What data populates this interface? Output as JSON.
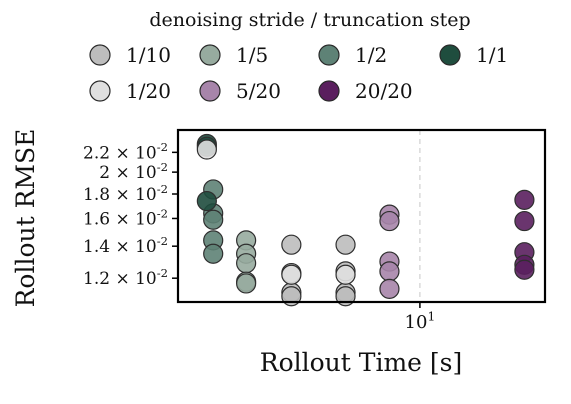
{
  "chart_data": {
    "type": "scatter",
    "xlabel": "Rollout Time [s]",
    "ylabel": "Rollout RMSE",
    "x_scale": "log",
    "y_scale": "log",
    "xlim": [
      1.7,
      25
    ],
    "ylim": [
      0.0107,
      0.0245
    ],
    "grid": "dashed vertical line at x = 10^1 only",
    "x_ticks": [
      {
        "value": 10,
        "label": "10^1"
      }
    ],
    "y_ticks": [
      {
        "value": 0.012,
        "label": "1.2 × 10^-2"
      },
      {
        "value": 0.014,
        "label": "1.4 × 10^-2"
      },
      {
        "value": 0.016,
        "label": "1.6 × 10^-2"
      },
      {
        "value": 0.018,
        "label": "1.8 × 10^-2"
      },
      {
        "value": 0.02,
        "label": "2 × 10^-2"
      },
      {
        "value": 0.022,
        "label": "2.2 × 10^-2"
      }
    ],
    "legend": {
      "title": "denoising stride / truncation step",
      "placement": "top, outside plot",
      "entries": [
        "1/10",
        "1/5",
        "1/2",
        "1/1",
        "1/20",
        "5/20",
        "20/20"
      ]
    },
    "series": [
      {
        "name": "1/10",
        "color": "#bdbdbd",
        "points": [
          [
            3.9,
            0.0141
          ],
          [
            3.9,
            0.0123
          ],
          [
            3.9,
            0.0112
          ],
          [
            3.9,
            0.011
          ],
          [
            5.8,
            0.0141
          ],
          [
            5.8,
            0.0124
          ],
          [
            5.8,
            0.0112
          ],
          [
            5.8,
            0.011
          ]
        ]
      },
      {
        "name": "1/5",
        "color": "#97ab9f",
        "points": [
          [
            2.8,
            0.0144
          ],
          [
            2.8,
            0.0135
          ],
          [
            2.8,
            0.0129
          ],
          [
            2.8,
            0.0118
          ],
          [
            2.8,
            0.0117
          ]
        ]
      },
      {
        "name": "1/2",
        "color": "#5e8276",
        "points": [
          [
            2.2,
            0.0184
          ],
          [
            2.2,
            0.0164
          ],
          [
            2.2,
            0.0159
          ],
          [
            2.2,
            0.0144
          ],
          [
            2.2,
            0.0135
          ]
        ]
      },
      {
        "name": "1/1",
        "color": "#1f4d3e",
        "points": [
          [
            2.1,
            0.0229
          ],
          [
            2.1,
            0.0226
          ],
          [
            2.1,
            0.0174
          ]
        ]
      },
      {
        "name": "1/20",
        "color": "#e0e0e0",
        "points": [
          [
            3.9,
            0.0122
          ],
          [
            5.8,
            0.0122
          ],
          [
            2.1,
            0.0223
          ]
        ]
      },
      {
        "name": "5/20",
        "color": "#a785aa",
        "points": [
          [
            8.0,
            0.0163
          ],
          [
            8.0,
            0.0158
          ],
          [
            8.0,
            0.013
          ],
          [
            8.0,
            0.0124
          ],
          [
            8.0,
            0.0114
          ]
        ]
      },
      {
        "name": "20/20",
        "color": "#5a1f5e",
        "points": [
          [
            21.5,
            0.0175
          ],
          [
            21.5,
            0.0158
          ],
          [
            21.5,
            0.0136
          ],
          [
            21.5,
            0.0128
          ],
          [
            21.5,
            0.0125
          ]
        ]
      }
    ]
  }
}
